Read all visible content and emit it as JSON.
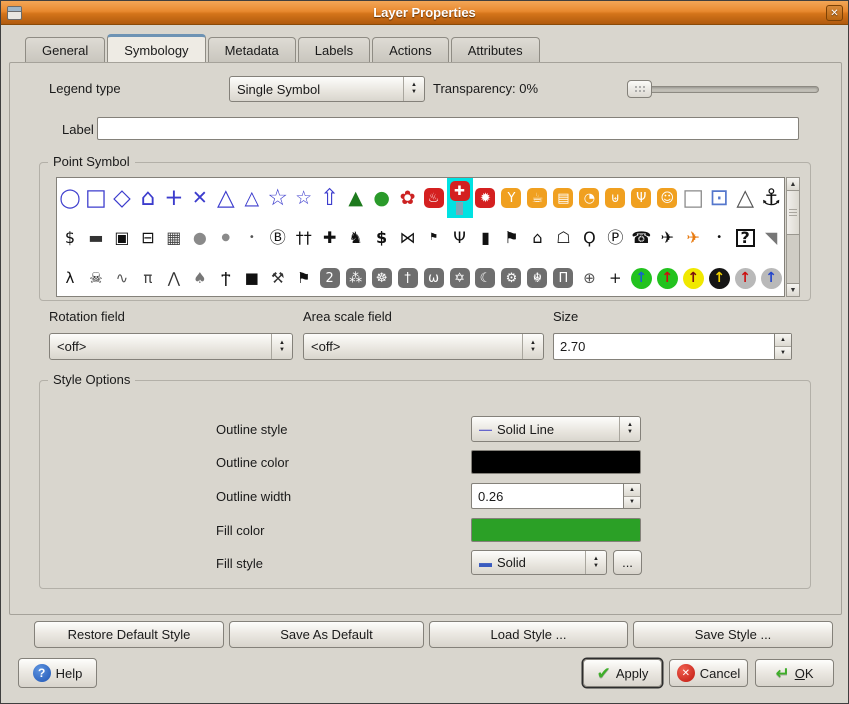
{
  "window": {
    "title": "Layer Properties",
    "close_glyph": "✕"
  },
  "tabs": [
    {
      "label": "General",
      "active": false
    },
    {
      "label": "Symbology",
      "active": true
    },
    {
      "label": "Metadata",
      "active": false
    },
    {
      "label": "Labels",
      "active": false
    },
    {
      "label": "Actions",
      "active": false
    },
    {
      "label": "Attributes",
      "active": false
    }
  ],
  "legend": {
    "label": "Legend type",
    "value": "Single Symbol",
    "transparency_label": "Transparency: 0%",
    "slider_value_pct": 0
  },
  "label_field": {
    "label": "Label",
    "value": "",
    "placeholder": ""
  },
  "point_symbol": {
    "group_label": "Point Symbol",
    "selected_symbol": "first-aid",
    "selection_color": "#00e2e2",
    "rows": [
      [
        {
          "name": "circle",
          "g": "◯",
          "fg": "#3c3ccd"
        },
        {
          "name": "rectangle",
          "g": "□",
          "fg": "#3c3ccd",
          "size": "l"
        },
        {
          "name": "diamond",
          "g": "◇",
          "fg": "#3c3ccd",
          "size": "l"
        },
        {
          "name": "pentagon",
          "g": "⌂",
          "fg": "#3c3ccd",
          "size": "l"
        },
        {
          "name": "cross",
          "g": "+",
          "fg": "#3c3ccd",
          "size": "l"
        },
        {
          "name": "cross-x",
          "g": "✕",
          "fg": "#3c3ccd"
        },
        {
          "name": "triangle",
          "g": "△",
          "fg": "#3c3ccd",
          "size": "l"
        },
        {
          "name": "equilateral-triangle",
          "g": "△",
          "fg": "#3c3ccd"
        },
        {
          "name": "star",
          "g": "☆",
          "fg": "#3c3ccd",
          "size": "l"
        },
        {
          "name": "regular-star",
          "g": "☆",
          "fg": "#3c3ccd"
        },
        {
          "name": "arrow-up",
          "g": "⇧",
          "fg": "#3c3ccd",
          "size": "l"
        },
        {
          "name": "pine-tree",
          "g": "▲",
          "fg": "#1d7a1d"
        },
        {
          "name": "deciduous-tree",
          "g": "●",
          "fg": "#2a9a2a"
        },
        {
          "name": "flower",
          "g": "✿",
          "fg": "#cc2222"
        },
        {
          "name": "fire",
          "g": "♨",
          "fg": "#ffffff",
          "bg": "#d42020"
        },
        {
          "name": "first-aid",
          "g": "✚",
          "fg": "#ffffff",
          "bg": "#d42020",
          "sel": true,
          "pole": true
        },
        {
          "name": "star-badge",
          "g": "✹",
          "fg": "#ffffff",
          "bg": "#d42020"
        },
        {
          "name": "cocktail-bar",
          "g": "Y",
          "fg": "#ffffff",
          "bg": "#f0a020"
        },
        {
          "name": "cafe",
          "g": "☕",
          "fg": "#ffffff",
          "bg": "#f0a020"
        },
        {
          "name": "cinema",
          "g": "▤",
          "fg": "#ffffff",
          "bg": "#f0a020"
        },
        {
          "name": "pizzeria",
          "g": "◔",
          "fg": "#ffffff",
          "bg": "#f0a020"
        },
        {
          "name": "pub",
          "g": "⊎",
          "fg": "#ffffff",
          "bg": "#f0a020"
        },
        {
          "name": "restaurant",
          "g": "Ψ",
          "fg": "#ffffff",
          "bg": "#f0a020"
        },
        {
          "name": "entertainment",
          "g": "☺",
          "fg": "#ffffff",
          "bg": "#f0a020"
        },
        {
          "name": "empty-square",
          "g": "□",
          "fg": "#8a8a8a",
          "size": "l"
        },
        {
          "name": "framed-square",
          "g": "⊡",
          "fg": "#5577cc",
          "size": "l"
        },
        {
          "name": "open-triangle",
          "g": "△",
          "fg": "#555555",
          "size": "l"
        },
        {
          "name": "anchor",
          "g": "⚓",
          "fg": "#111111",
          "size": "l"
        }
      ],
      [
        {
          "name": "dollar",
          "g": "$",
          "fg": "#111111"
        },
        {
          "name": "canoe",
          "g": "▬",
          "fg": "#333333"
        },
        {
          "name": "camera",
          "g": "▣",
          "fg": "#111111"
        },
        {
          "name": "car",
          "g": "⊟",
          "fg": "#111111"
        },
        {
          "name": "building",
          "g": "▦",
          "fg": "#444444"
        },
        {
          "name": "large-ellipse",
          "g": "●",
          "fg": "#8a8a8a"
        },
        {
          "name": "small-circle",
          "g": "●",
          "fg": "#8a8a8a",
          "size": "s"
        },
        {
          "name": "tiny-dot",
          "g": "•",
          "fg": "#555555",
          "size": "s"
        },
        {
          "name": "bank",
          "g": "Ⓑ",
          "fg": "#111111"
        },
        {
          "name": "people",
          "g": "††",
          "fg": "#111111"
        },
        {
          "name": "hospital-cross",
          "g": "✚",
          "fg": "#111111"
        },
        {
          "name": "deer",
          "g": "♞",
          "fg": "#111111"
        },
        {
          "name": "money",
          "g": "$",
          "fg": "#111111",
          "bold": true
        },
        {
          "name": "fish",
          "g": "⋈",
          "fg": "#111111"
        },
        {
          "name": "note-flag",
          "g": "⚑",
          "fg": "#111111",
          "size": "s"
        },
        {
          "name": "cutlery",
          "g": "Ψ",
          "fg": "#111111"
        },
        {
          "name": "fuel-pump",
          "g": "▮",
          "fg": "#111111"
        },
        {
          "name": "golf",
          "g": "⚑",
          "fg": "#111111"
        },
        {
          "name": "shelter",
          "g": "⌂",
          "fg": "#111111"
        },
        {
          "name": "house",
          "g": "☖",
          "fg": "#111111"
        },
        {
          "name": "balloon",
          "g": "Ϙ",
          "fg": "#111111"
        },
        {
          "name": "parking",
          "g": "Ⓟ",
          "fg": "#111111"
        },
        {
          "name": "telephone",
          "g": "☎",
          "fg": "#111111"
        },
        {
          "name": "airport",
          "g": "✈",
          "fg": "#111111"
        },
        {
          "name": "airfield",
          "g": "✈",
          "fg": "#e87a10"
        },
        {
          "name": "small-dot",
          "g": "•",
          "fg": "#111111",
          "size": "s"
        },
        {
          "name": "question",
          "g": "?",
          "fg": "#111111",
          "box": true
        },
        {
          "name": "diving",
          "g": "◥",
          "fg": "#777777"
        }
      ],
      [
        {
          "name": "skiing",
          "g": "λ",
          "fg": "#111111"
        },
        {
          "name": "skull",
          "g": "☠",
          "fg": "#111111"
        },
        {
          "name": "swimming",
          "g": "∿",
          "fg": "#555555"
        },
        {
          "name": "picnic",
          "g": "π",
          "fg": "#444444"
        },
        {
          "name": "teepee",
          "g": "⋀",
          "fg": "#333333"
        },
        {
          "name": "gray-tree",
          "g": "♠",
          "fg": "#777777"
        },
        {
          "name": "hiker",
          "g": "Ϯ",
          "fg": "#111111"
        },
        {
          "name": "small-square",
          "g": "■",
          "fg": "#111111",
          "size": "s"
        },
        {
          "name": "mine",
          "g": "⚒",
          "fg": "#333333"
        },
        {
          "name": "flag",
          "g": "⚑",
          "fg": "#111111"
        },
        {
          "name": "shinto",
          "g": "2",
          "fg": "#ffffff",
          "bg": "#6e6e6e"
        },
        {
          "name": "jain",
          "g": "⁂",
          "fg": "#ffffff",
          "bg": "#6e6e6e"
        },
        {
          "name": "dharma-wheel",
          "g": "☸",
          "fg": "#ffffff",
          "bg": "#6e6e6e"
        },
        {
          "name": "christian-cross",
          "g": "†",
          "fg": "#ffffff",
          "bg": "#6e6e6e"
        },
        {
          "name": "om",
          "g": "ω",
          "fg": "#ffffff",
          "bg": "#6e6e6e"
        },
        {
          "name": "star-of-david",
          "g": "✡",
          "fg": "#ffffff",
          "bg": "#6e6e6e"
        },
        {
          "name": "crescent",
          "g": "☾",
          "fg": "#ffffff",
          "bg": "#6e6e6e"
        },
        {
          "name": "bahai",
          "g": "⚙",
          "fg": "#ffffff",
          "bg": "#6e6e6e"
        },
        {
          "name": "khanda",
          "g": "☬",
          "fg": "#ffffff",
          "bg": "#6e6e6e"
        },
        {
          "name": "museum",
          "g": "Π",
          "fg": "#ffffff",
          "bg": "#6e6e6e"
        },
        {
          "name": "globe-cross",
          "g": "⊕",
          "fg": "#555555"
        },
        {
          "name": "survey-marker",
          "g": "+",
          "fg": "#111111"
        },
        {
          "name": "arrow-blue-on-green",
          "g": "↑",
          "fg": "#1560d0",
          "bg": "#22c21e",
          "shape": "circle"
        },
        {
          "name": "arrow-red-on-green",
          "g": "↑",
          "fg": "#cc1010",
          "bg": "#22c21e",
          "shape": "circle"
        },
        {
          "name": "arrow-darkred-on-yellow",
          "g": "↑",
          "fg": "#7a1010",
          "bg": "#f0e800",
          "shape": "circle"
        },
        {
          "name": "arrow-yellow-on-black",
          "g": "↑",
          "fg": "#f0d000",
          "bg": "#151515",
          "shape": "circle"
        },
        {
          "name": "arrow-red-on-gray",
          "g": "↑",
          "fg": "#cc1010",
          "bg": "#b9b9b9",
          "shape": "circle"
        },
        {
          "name": "arrow-blue-on-gray",
          "g": "↑",
          "fg": "#2244cc",
          "bg": "#b9b9b9",
          "shape": "circle"
        }
      ]
    ]
  },
  "fields": {
    "rotation": {
      "label": "Rotation field",
      "value": "<off>"
    },
    "area": {
      "label": "Area scale field",
      "value": "<off>"
    },
    "size": {
      "label": "Size",
      "value": "2.70"
    }
  },
  "style": {
    "group_label": "Style Options",
    "outline_style": {
      "label": "Outline style",
      "value": "Solid Line",
      "icon_glyph": "—",
      "icon_color": "#6666cc"
    },
    "outline_color": {
      "label": "Outline color",
      "color": "#000000"
    },
    "outline_width": {
      "label": "Outline width",
      "value": "0.26"
    },
    "fill_color": {
      "label": "Fill color",
      "color": "#2ba026"
    },
    "fill_style": {
      "label": "Fill style",
      "value": "Solid",
      "icon_glyph": "▬",
      "icon_color": "#3a5bbf",
      "more_label": "..."
    }
  },
  "style_buttons": [
    "Restore Default Style",
    "Save As Default",
    "Load Style ...",
    "Save Style ..."
  ],
  "footer": {
    "help_label": "Help",
    "help_icon_glyph": "?",
    "apply_label": "Apply",
    "apply_icon_glyph": "✔",
    "cancel_label": "Cancel",
    "cancel_icon_glyph": "✕",
    "ok_label": "OK",
    "ok_icon_glyph": "↵"
  },
  "ui_glyphs": {
    "spin_up": "▲",
    "spin_down": "▼",
    "combo_up": "▲",
    "combo_down": "▼"
  },
  "colors": {
    "titlebar_orange": "#e8892f",
    "dialog_bg": "#d9d6ce",
    "fill_green": "#2ba026",
    "selection_cyan": "#00e2e2"
  }
}
